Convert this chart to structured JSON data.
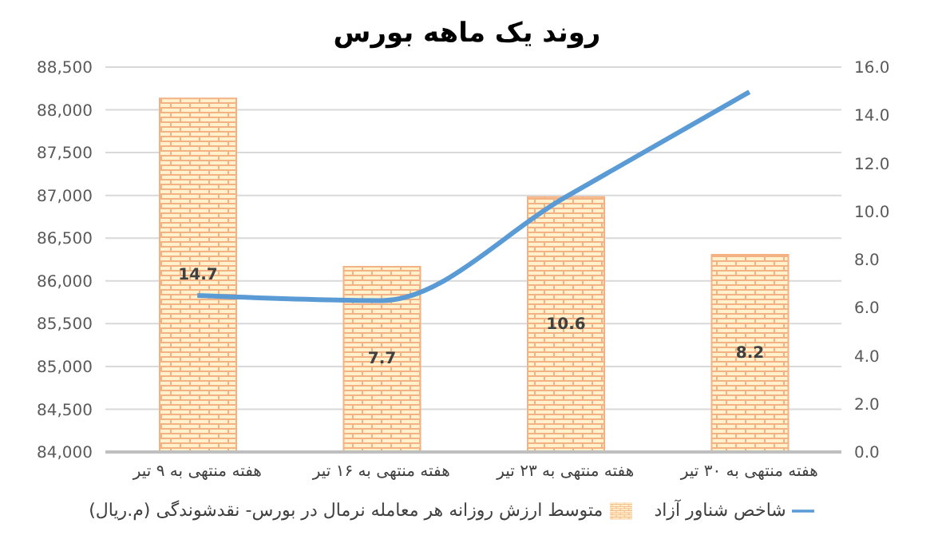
{
  "chart_data": {
    "type": "bar",
    "title": "روند یک ماهه بورس",
    "categories": [
      "هفته منتهی به ۹ تیر",
      "هفته منتهی به ۱۶ تیر",
      "هفته منتهی به ۲۳ تیر",
      "هفته منتهی به ۳۰ تیر"
    ],
    "series": [
      {
        "name": "متوسط ارزش روزانه هر معامله نرمال در بورس- نقدشوندگی (م.ریال)",
        "axis": "y2",
        "color": "#f4b183",
        "values": [
          14.7,
          7.7,
          10.6,
          8.2
        ],
        "value_labels": [
          "14.7",
          "7.7",
          "10.6",
          "8.2"
        ]
      },
      {
        "name": "شاخص شناور آزاد",
        "type": "line",
        "color": "#5b9bd5",
        "values": [
          85830,
          85770,
          86980,
          88210
        ]
      }
    ],
    "ylim": [
      84000,
      88500
    ],
    "yticks": [
      {
        "value": 84000,
        "label": "84,000"
      },
      {
        "value": 84500,
        "label": "84,500"
      },
      {
        "value": 85000,
        "label": "85,000"
      },
      {
        "value": 85500,
        "label": "85,500"
      },
      {
        "value": 86000,
        "label": "86,000"
      },
      {
        "value": 86500,
        "label": "86,500"
      },
      {
        "value": 87000,
        "label": "87,000"
      },
      {
        "value": 87500,
        "label": "87,500"
      },
      {
        "value": 88000,
        "label": "88,000"
      },
      {
        "value": 88500,
        "label": "88,500"
      }
    ],
    "y2lim": [
      0,
      16
    ],
    "y2ticks": [
      {
        "value": 0,
        "label": "0.0"
      },
      {
        "value": 2,
        "label": "2.0"
      },
      {
        "value": 4,
        "label": "4.0"
      },
      {
        "value": 6,
        "label": "6.0"
      },
      {
        "value": 8,
        "label": "8.0"
      },
      {
        "value": 10,
        "label": "10.0"
      },
      {
        "value": 12,
        "label": "12.0"
      },
      {
        "value": 14,
        "label": "14.0"
      },
      {
        "value": 16,
        "label": "16.0"
      }
    ],
    "grid": "y",
    "legend": "bottom",
    "marker": "none",
    "line_style": "solid"
  }
}
